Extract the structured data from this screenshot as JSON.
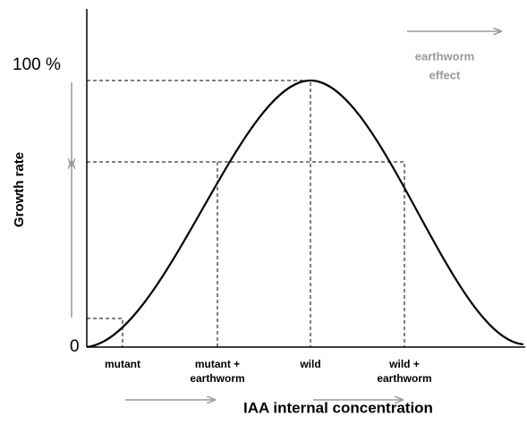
{
  "y_axis": {
    "label": "Growth rate",
    "ticks": [
      "100 %",
      "0"
    ]
  },
  "x_axis": {
    "label": "IAA internal concentration",
    "ticks": [
      [
        "mutant"
      ],
      [
        "mutant +",
        "earthworm"
      ],
      [
        "wild"
      ],
      [
        "wild +",
        "earthworm"
      ]
    ]
  },
  "effect_label": [
    "earthworm",
    "effect"
  ]
}
